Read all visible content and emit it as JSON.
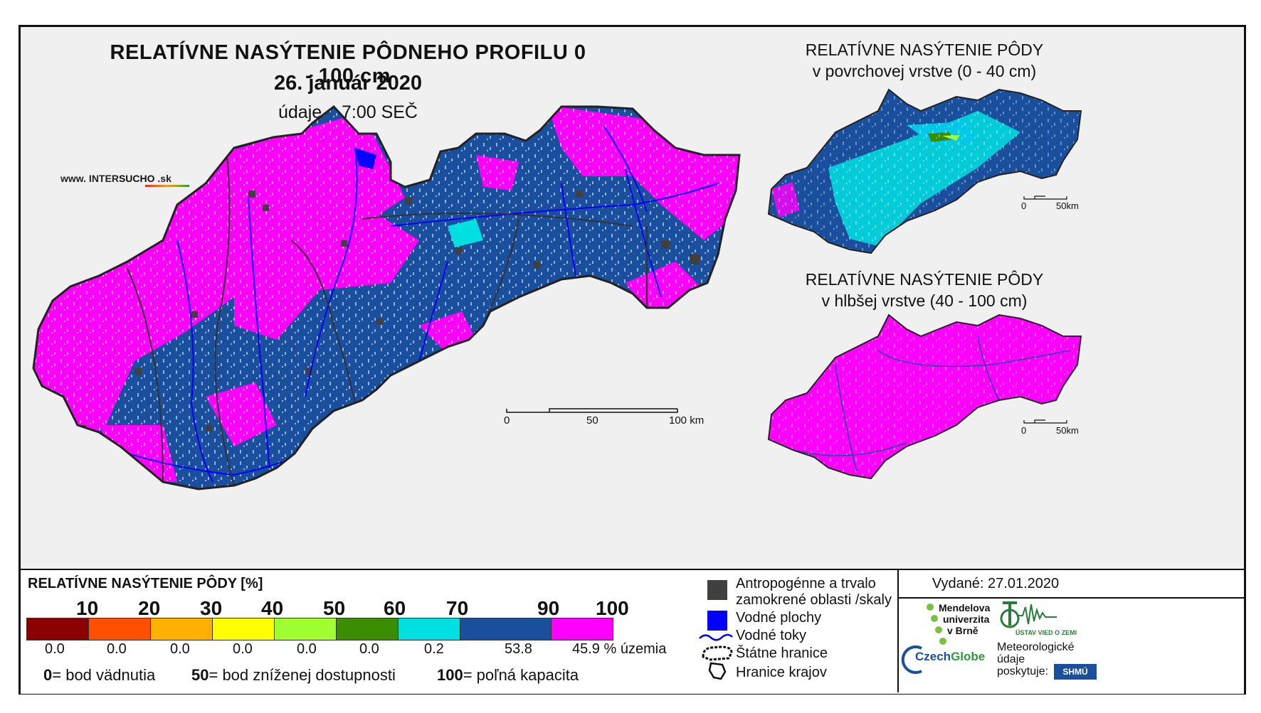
{
  "title": {
    "main": "RELATÍVNE NASÝTENIE PÔDNEHO PROFILU 0 - 100 cm",
    "date": "26. január 2020",
    "observation": "údaje o 7:00 SEČ"
  },
  "site": {
    "prefix": "www. INTER",
    "mid": "SUCHO",
    "suffix": " .sk"
  },
  "insets": {
    "top": {
      "line1": "RELATÍVNE NASÝTENIE PÔDY",
      "line2": "v povrchovej vrstve (0 - 40 cm)"
    },
    "bottom": {
      "line1": "RELATÍVNE NASÝTENIE PÔDY",
      "line2": "v hlbšej vrstve (40 - 100 cm)"
    }
  },
  "scalebar_main": {
    "labels": [
      "0",
      "50",
      "100 km"
    ]
  },
  "scalebar_inset": {
    "labels": [
      "0",
      "50km"
    ]
  },
  "legend": {
    "title": "RELATÍVNE NASÝTENIE PÔDY [%]",
    "ticks": [
      "10",
      "20",
      "30",
      "40",
      "50",
      "60",
      "70",
      "90",
      "100"
    ],
    "classes": [
      {
        "color": "#8b0000",
        "percent": "0.0"
      },
      {
        "color": "#ff5000",
        "percent": "0.0"
      },
      {
        "color": "#ffb000",
        "percent": "0.0"
      },
      {
        "color": "#ffff00",
        "percent": "0.0"
      },
      {
        "color": "#a0ff30",
        "percent": "0.0"
      },
      {
        "color": "#3a8c00",
        "percent": "0.0"
      },
      {
        "color": "#00e0e0",
        "percent": "0.2"
      },
      {
        "color": "#1a4f9e",
        "percent": "53.8"
      },
      {
        "color": "#ff00ff",
        "percent": "45.9"
      }
    ],
    "percent_unit": "% územia",
    "definitions": [
      {
        "value": "0",
        "text": "= bod vädnutia"
      },
      {
        "value": "50",
        "text": "= bod zníženej dostupnosti"
      },
      {
        "value": "100",
        "text": "= poľná kapacita"
      }
    ]
  },
  "symbols": {
    "anthropogenic_line1": "Antropogénne a trvalo",
    "anthropogenic_line2": "zamokrené oblasti /skaly",
    "water_bodies": "Vodné plochy",
    "water_streams": "Vodné toky",
    "state_borders": "Štátne hranice",
    "region_borders": "Hranice krajov"
  },
  "colors": {
    "anthropogenic": "#404040",
    "water": "#0000ff",
    "magenta": "#ff00ff",
    "blue": "#1a4f9e",
    "cyan": "#00e0e0"
  },
  "issued": "Vydané: 27.01.2020",
  "partners": {
    "mendel": [
      "Mendelova",
      "univerzita",
      "v Brně"
    ],
    "czechglobe_a": "Czech",
    "czechglobe_b": "Globe",
    "uvgz": "ÚSTAV VIED O ZEMI",
    "meteo": [
      "Meteorologické",
      "údaje",
      "poskytuje:"
    ],
    "shmu": "SHMÚ"
  }
}
